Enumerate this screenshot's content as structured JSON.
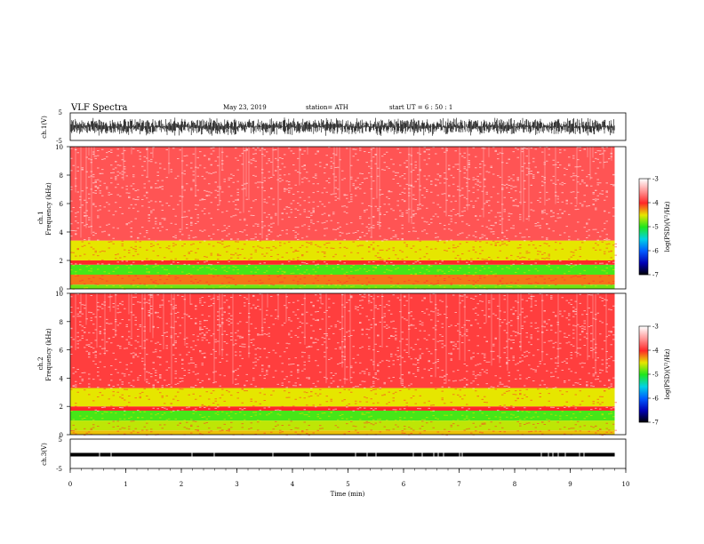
{
  "header": {
    "title": "VLF  Spectra",
    "date": "May 23, 2019",
    "station": "station= ATH",
    "start": "start  UT  =    6  : 50 : 1"
  },
  "colors": {
    "background_high": "#ff2a2a",
    "speckle": "#ffffff",
    "band_yellow": "#e8e800",
    "band_green": "#22ee22",
    "line_color": "#000000"
  },
  "chart_data": [
    {
      "id": "ch1-waveform",
      "type": "line",
      "title": "VLF  Spectra",
      "ylabel": "ch.1(V)",
      "ylim": [
        -5,
        5
      ],
      "yticks": [
        "5",
        "-5"
      ],
      "xlim": [
        0,
        10
      ],
      "signal_extent_min": 9.8,
      "approx_envelope": [
        -3.5,
        3.5
      ]
    },
    {
      "id": "ch1-spectrogram",
      "type": "heatmap",
      "ylabel": "ch.1\nFrequency (kHz)",
      "ylim": [
        0,
        10
      ],
      "yticks": [
        "10",
        "8",
        "6",
        "4",
        "2",
        "0"
      ],
      "xlim": [
        0,
        10
      ],
      "signal_extent_min": 9.8,
      "colorbar": {
        "label": "log(PSD)(V²/Hz)",
        "range": [
          -7,
          -3
        ],
        "ticks": [
          "-3",
          "-4",
          "-5",
          "-6",
          "-7"
        ]
      },
      "bands": [
        {
          "from_khz": 0.0,
          "to_khz": 0.3,
          "level": -4.8
        },
        {
          "from_khz": 0.3,
          "to_khz": 1.0,
          "level": -4.2
        },
        {
          "from_khz": 1.0,
          "to_khz": 1.7,
          "level": -4.9
        },
        {
          "from_khz": 1.7,
          "to_khz": 2.0,
          "level": -4.0
        },
        {
          "from_khz": 2.0,
          "to_khz": 3.4,
          "level": -4.5
        },
        {
          "from_khz": 3.4,
          "to_khz": 10.0,
          "level": -3.8
        }
      ]
    },
    {
      "id": "ch2-spectrogram",
      "type": "heatmap",
      "ylabel": "ch.2\nFrequency (kHz)",
      "ylim": [
        0,
        10
      ],
      "yticks": [
        "10",
        "8",
        "6",
        "4",
        "2",
        "0"
      ],
      "xlim": [
        0,
        10
      ],
      "signal_extent_min": 9.8,
      "colorbar": {
        "label": "log(PSD)(V²/Hz)",
        "range": [
          -7,
          -3
        ],
        "ticks": [
          "-3",
          "-4",
          "-5",
          "-6",
          "-7"
        ]
      },
      "bands": [
        {
          "from_khz": 0.0,
          "to_khz": 0.3,
          "level": -4.4
        },
        {
          "from_khz": 0.3,
          "to_khz": 1.0,
          "level": -4.6
        },
        {
          "from_khz": 1.0,
          "to_khz": 1.7,
          "level": -4.9
        },
        {
          "from_khz": 1.7,
          "to_khz": 2.0,
          "level": -4.0
        },
        {
          "from_khz": 2.0,
          "to_khz": 3.3,
          "level": -4.5
        },
        {
          "from_khz": 3.3,
          "to_khz": 10.0,
          "level": -3.9
        }
      ]
    },
    {
      "id": "ch3-waveform",
      "type": "line",
      "ylabel": "ch.3(V)",
      "ylim": [
        -5,
        5
      ],
      "yticks": [
        "5",
        "-5"
      ],
      "xlim": [
        0,
        10
      ],
      "xlabel": "Time  (min)",
      "xticks": [
        "0",
        "1",
        "2",
        "3",
        "4",
        "5",
        "6",
        "7",
        "8",
        "9",
        "10"
      ],
      "signal_extent_min": 9.8,
      "level_v": 0.3
    }
  ]
}
